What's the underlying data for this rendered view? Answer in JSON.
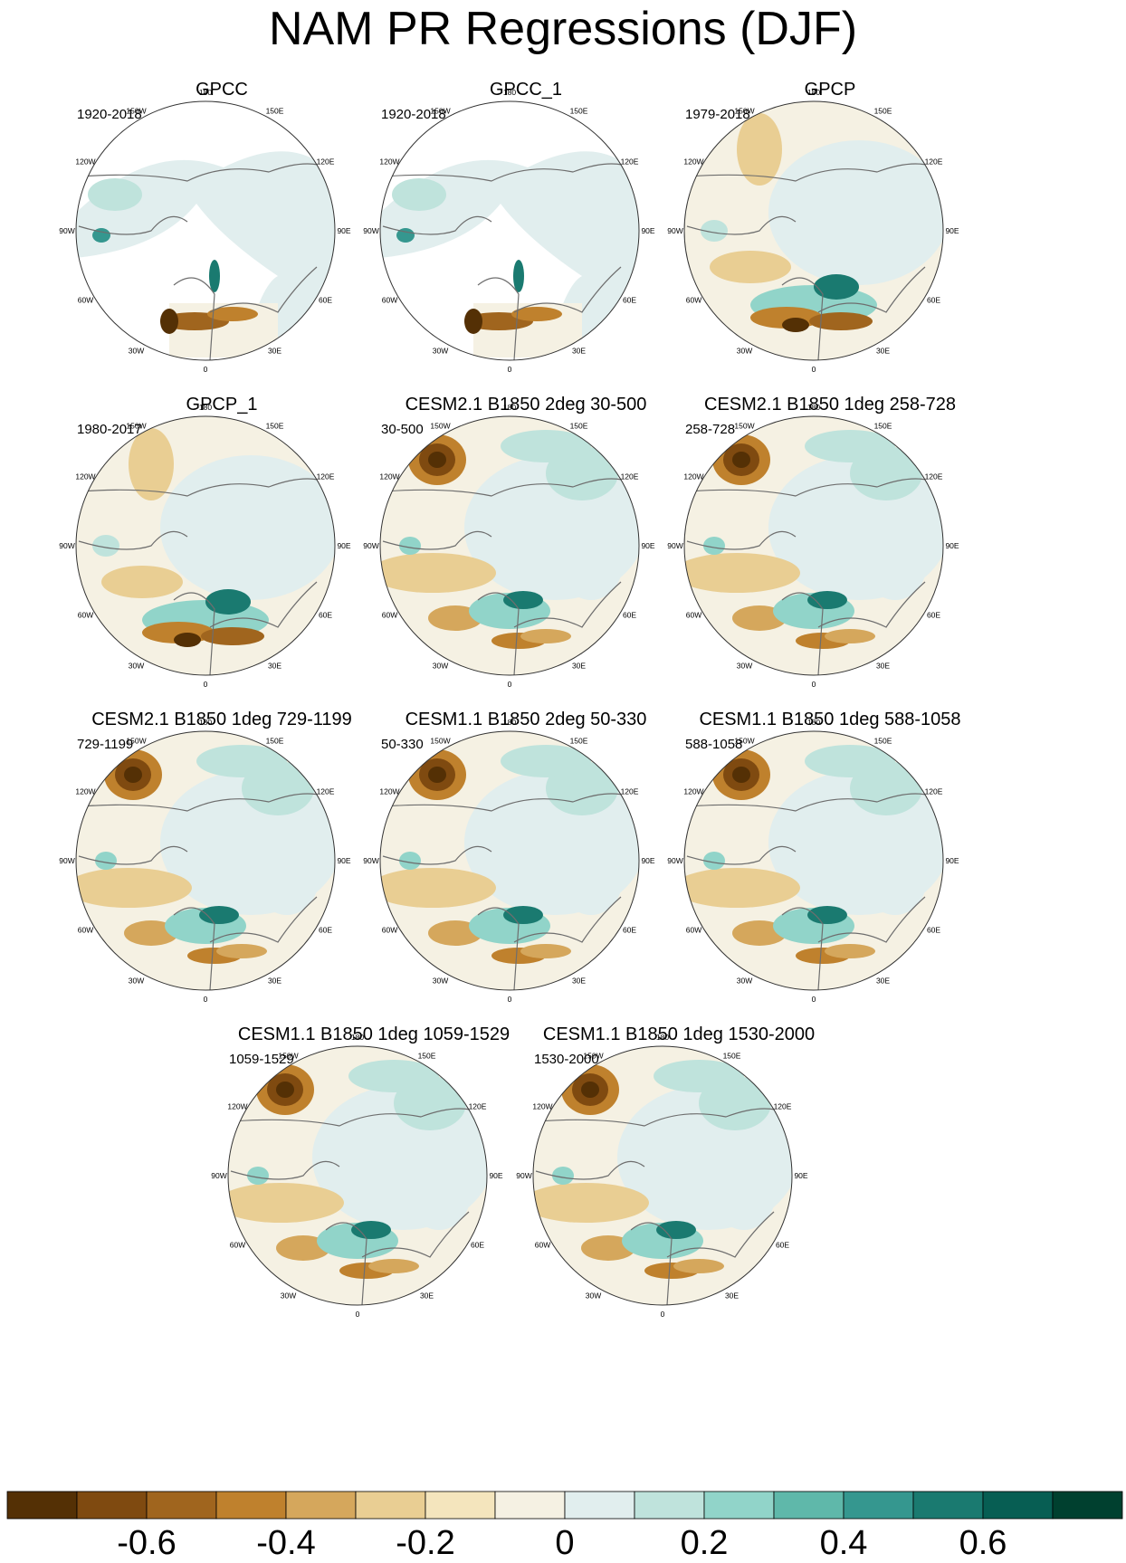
{
  "title": "NAM PR Regressions (DJF)",
  "longitude_labels": [
    "180",
    "150E",
    "120E",
    "90E",
    "60E",
    "30E",
    "0",
    "30W",
    "60W",
    "90W",
    "120W",
    "150W"
  ],
  "panels": [
    {
      "title": "GPCC",
      "period": "1920-2018",
      "kind": "obs_land"
    },
    {
      "title": "GPCC_1",
      "period": "1920-2018",
      "kind": "obs_land"
    },
    {
      "title": "GPCP",
      "period": "1979-2018",
      "kind": "obs_global"
    },
    {
      "title": "GPCP_1",
      "period": "1980-2017",
      "kind": "obs_global"
    },
    {
      "title": "CESM2.1 B1850 2deg 30-500",
      "period": "30-500",
      "kind": "model"
    },
    {
      "title": "CESM2.1 B1850 1deg 258-728",
      "period": "258-728",
      "kind": "model"
    },
    {
      "title": "CESM2.1 B1850 1deg 729-1199",
      "period": "729-1199",
      "kind": "model"
    },
    {
      "title": "CESM1.1 B1850 2deg 50-330",
      "period": "50-330",
      "kind": "model"
    },
    {
      "title": "CESM1.1 B1850 1deg 588-1058",
      "period": "588-1058",
      "kind": "model"
    },
    {
      "title": "CESM1.1 B1850 1deg 1059-1529",
      "period": "1059-1529",
      "kind": "model"
    },
    {
      "title": "CESM1.1 B1850 1deg 1530-2000",
      "period": "1530-2000",
      "kind": "model"
    }
  ],
  "colorbar": {
    "colors": [
      "#543005",
      "#7f4a10",
      "#a0651e",
      "#bf812d",
      "#d5a75c",
      "#e9ce93",
      "#f4e5bd",
      "#f5f1e3",
      "#e1eeee",
      "#bfe3dc",
      "#91d4c9",
      "#5fb8aa",
      "#35978f",
      "#1a7a70",
      "#075e53",
      "#00402f"
    ],
    "tick_labels": [
      "-0.6",
      "-0.4",
      "-0.2",
      "0",
      "0.2",
      "0.4",
      "0.6"
    ],
    "tick_values": [
      -0.6,
      -0.4,
      -0.2,
      0,
      0.2,
      0.4,
      0.6
    ],
    "range": [
      -0.8,
      0.8
    ]
  }
}
